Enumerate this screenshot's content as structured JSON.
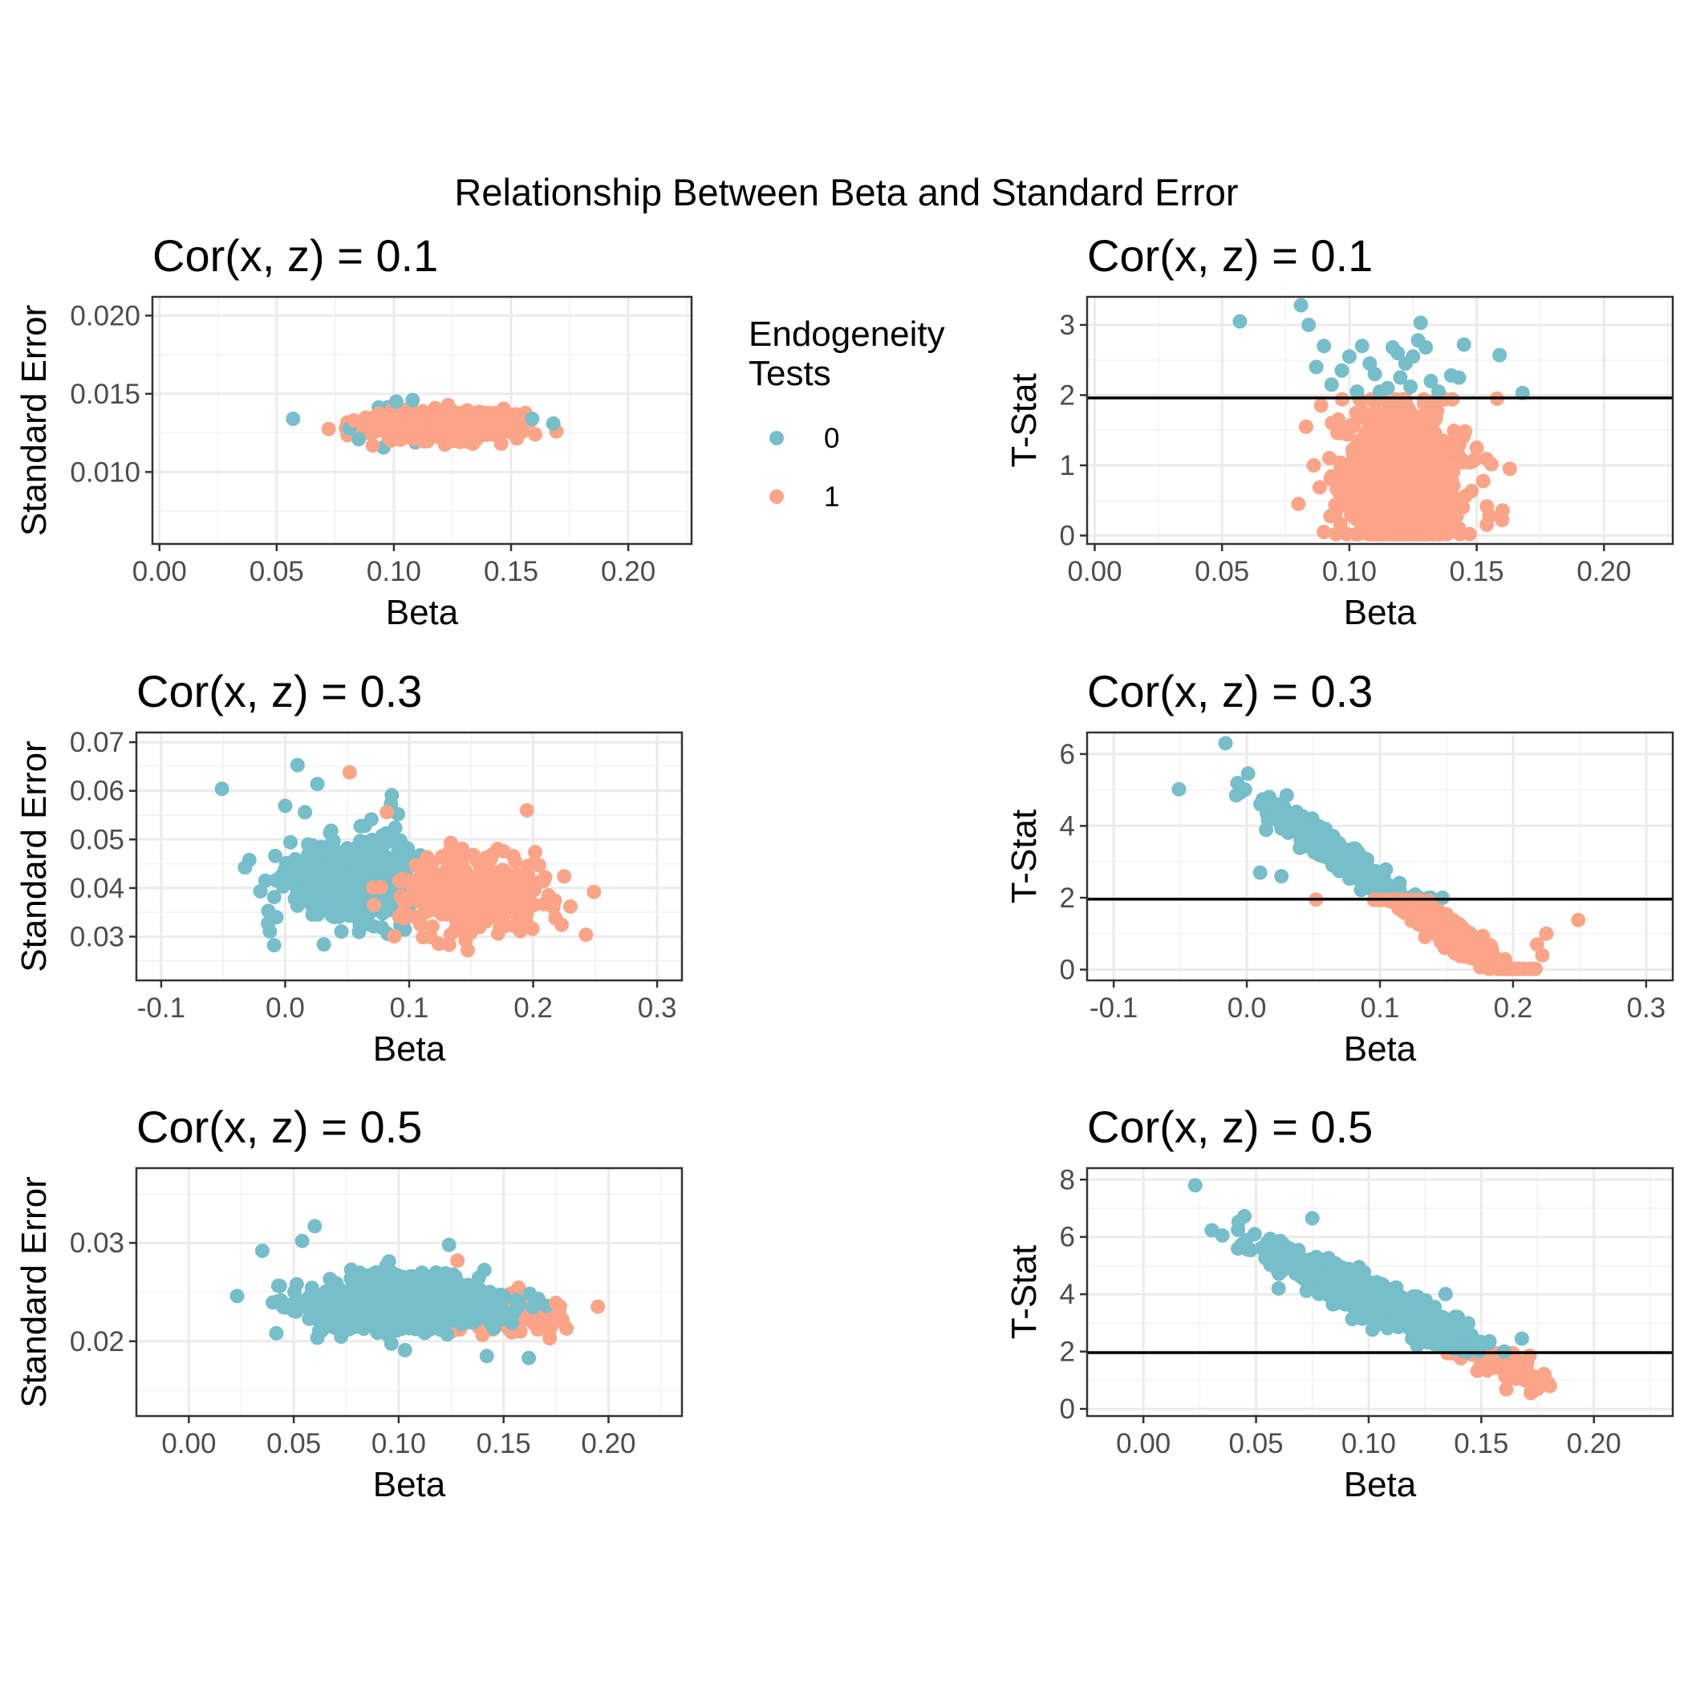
{
  "main_title": "Relationship Between Beta and Standard Error",
  "legend": {
    "title_lines": [
      "Endogeneity",
      "Tests"
    ],
    "items": [
      {
        "label": "0",
        "color": "#76BEC9"
      },
      {
        "label": "1",
        "color": "#FCA487"
      }
    ]
  },
  "chart_data": [
    {
      "type": "scatter",
      "title": "Cor(x, z) = 0.1",
      "xlabel": "Beta",
      "ylabel": "Standard Error",
      "xlim": [
        -0.003,
        0.227
      ],
      "ylim": [
        0.0054,
        0.0212
      ],
      "xticks": [
        0.0,
        0.05,
        0.1,
        0.15,
        0.2
      ],
      "xtick_labels": [
        "0.00",
        "0.05",
        "0.10",
        "0.15",
        "0.20"
      ],
      "yticks": [
        0.01,
        0.015,
        0.02
      ],
      "ytick_labels": [
        "0.010",
        "0.015",
        "0.020"
      ],
      "grid": true,
      "hline": null,
      "clusters": [
        {
          "group": "0",
          "n": 60,
          "cx": 0.118,
          "sx": 0.016,
          "cy": 0.013,
          "sy": 0.0005,
          "slope": 0,
          "seed": 11
        },
        {
          "group": "1",
          "n": 950,
          "cx": 0.12,
          "sx": 0.013,
          "cy": 0.013,
          "sy": 0.0004,
          "slope": 0,
          "seed": 12
        }
      ],
      "points": [
        {
          "group": "0",
          "x": 0.057,
          "y": 0.0134
        },
        {
          "group": "0",
          "x": 0.168,
          "y": 0.0131
        },
        {
          "group": "0",
          "x": 0.159,
          "y": 0.0134
        },
        {
          "group": "0",
          "x": 0.085,
          "y": 0.0121
        },
        {
          "group": "0",
          "x": 0.101,
          "y": 0.0145
        },
        {
          "group": "0",
          "x": 0.108,
          "y": 0.0146
        },
        {
          "group": "0",
          "x": 0.081,
          "y": 0.0128
        },
        {
          "group": "1",
          "x": 0.083,
          "y": 0.0133
        },
        {
          "group": "1",
          "x": 0.155,
          "y": 0.0126
        },
        {
          "group": "1",
          "x": 0.091,
          "y": 0.0117
        }
      ]
    },
    {
      "type": "scatter",
      "title": "Cor(x, z) = 0.1",
      "xlabel": "Beta",
      "ylabel": "T-Stat",
      "xlim": [
        -0.003,
        0.227
      ],
      "ylim": [
        -0.12,
        3.4
      ],
      "xticks": [
        0.0,
        0.05,
        0.1,
        0.15,
        0.2
      ],
      "xtick_labels": [
        "0.00",
        "0.05",
        "0.10",
        "0.15",
        "0.20"
      ],
      "yticks": [
        0,
        1,
        2,
        3
      ],
      "ytick_labels": [
        "0",
        "1",
        "2",
        "3"
      ],
      "grid": true,
      "hline": 1.96,
      "clusters": [
        {
          "group": "1",
          "n": 1000,
          "cx": 0.12,
          "sx": 0.011,
          "cy": 0.8,
          "sy": 0.5,
          "slope": 0,
          "seed": 21
        }
      ],
      "points": [
        {
          "group": "0",
          "x": 0.057,
          "y": 3.05
        },
        {
          "group": "0",
          "x": 0.081,
          "y": 3.28
        },
        {
          "group": "0",
          "x": 0.084,
          "y": 3.0
        },
        {
          "group": "0",
          "x": 0.09,
          "y": 2.7
        },
        {
          "group": "0",
          "x": 0.087,
          "y": 2.4
        },
        {
          "group": "0",
          "x": 0.093,
          "y": 2.15
        },
        {
          "group": "0",
          "x": 0.1,
          "y": 2.55
        },
        {
          "group": "0",
          "x": 0.105,
          "y": 2.7
        },
        {
          "group": "0",
          "x": 0.11,
          "y": 2.3
        },
        {
          "group": "0",
          "x": 0.112,
          "y": 2.05
        },
        {
          "group": "0",
          "x": 0.117,
          "y": 2.68
        },
        {
          "group": "0",
          "x": 0.119,
          "y": 2.6
        },
        {
          "group": "0",
          "x": 0.122,
          "y": 2.45
        },
        {
          "group": "0",
          "x": 0.125,
          "y": 2.55
        },
        {
          "group": "0",
          "x": 0.127,
          "y": 2.78
        },
        {
          "group": "0",
          "x": 0.128,
          "y": 3.03
        },
        {
          "group": "0",
          "x": 0.13,
          "y": 2.68
        },
        {
          "group": "0",
          "x": 0.132,
          "y": 2.2
        },
        {
          "group": "0",
          "x": 0.12,
          "y": 2.25
        },
        {
          "group": "0",
          "x": 0.103,
          "y": 2.05
        },
        {
          "group": "0",
          "x": 0.097,
          "y": 2.35
        },
        {
          "group": "0",
          "x": 0.108,
          "y": 2.45
        },
        {
          "group": "0",
          "x": 0.135,
          "y": 2.05
        },
        {
          "group": "0",
          "x": 0.14,
          "y": 2.28
        },
        {
          "group": "0",
          "x": 0.143,
          "y": 2.25
        },
        {
          "group": "0",
          "x": 0.145,
          "y": 2.72
        },
        {
          "group": "0",
          "x": 0.159,
          "y": 2.57
        },
        {
          "group": "0",
          "x": 0.168,
          "y": 2.03
        },
        {
          "group": "0",
          "x": 0.115,
          "y": 2.1
        },
        {
          "group": "0",
          "x": 0.124,
          "y": 2.12
        },
        {
          "group": "1",
          "x": 0.08,
          "y": 0.45
        },
        {
          "group": "1",
          "x": 0.083,
          "y": 1.55
        },
        {
          "group": "1",
          "x": 0.086,
          "y": 1.0
        },
        {
          "group": "1",
          "x": 0.09,
          "y": 0.05
        },
        {
          "group": "1",
          "x": 0.158,
          "y": 1.95
        },
        {
          "group": "1",
          "x": 0.16,
          "y": 0.22
        },
        {
          "group": "1",
          "x": 0.163,
          "y": 0.95
        },
        {
          "group": "1",
          "x": 0.155,
          "y": 0.28
        },
        {
          "group": "1",
          "x": 0.15,
          "y": 1.25
        },
        {
          "group": "1",
          "x": 0.148,
          "y": 1.05
        }
      ]
    },
    {
      "type": "scatter",
      "title": "Cor(x, z) = 0.3",
      "xlabel": "Beta",
      "ylabel": "Standard Error",
      "xlim": [
        -0.12,
        0.32
      ],
      "ylim": [
        0.021,
        0.072
      ],
      "xticks": [
        -0.1,
        0.0,
        0.1,
        0.2,
        0.3
      ],
      "xtick_labels": [
        "-0.1",
        "0.0",
        "0.1",
        "0.2",
        "0.3"
      ],
      "yticks": [
        0.03,
        0.04,
        0.05,
        0.06,
        0.07
      ],
      "ytick_labels": [
        "0.03",
        "0.04",
        "0.05",
        "0.06",
        "0.07"
      ],
      "grid": true,
      "hline": null,
      "clusters": [
        {
          "group": "0",
          "n": 550,
          "cx": 0.06,
          "sx": 0.028,
          "cy": 0.041,
          "sy": 0.0042,
          "slope": 0,
          "seed": 31
        },
        {
          "group": "1",
          "n": 500,
          "cx": 0.15,
          "sx": 0.025,
          "cy": 0.0385,
          "sy": 0.0035,
          "slope": 0,
          "seed": 32
        }
      ],
      "points": [
        {
          "group": "0",
          "x": -0.051,
          "y": 0.0604
        },
        {
          "group": "0",
          "x": 0.01,
          "y": 0.0653
        },
        {
          "group": "0",
          "x": 0.026,
          "y": 0.0614
        },
        {
          "group": "0",
          "x": 0.0,
          "y": 0.0569
        },
        {
          "group": "0",
          "x": 0.016,
          "y": 0.0556
        },
        {
          "group": "0",
          "x": -0.016,
          "y": 0.0415
        },
        {
          "group": "0",
          "x": -0.008,
          "y": 0.0466
        },
        {
          "group": "0",
          "x": 0.086,
          "y": 0.0591
        },
        {
          "group": "0",
          "x": 0.091,
          "y": 0.0552
        },
        {
          "group": "1",
          "x": 0.052,
          "y": 0.0638
        },
        {
          "group": "1",
          "x": 0.082,
          "y": 0.0556
        },
        {
          "group": "1",
          "x": 0.195,
          "y": 0.056
        },
        {
          "group": "1",
          "x": 0.249,
          "y": 0.0392
        },
        {
          "group": "1",
          "x": 0.225,
          "y": 0.0424
        },
        {
          "group": "1",
          "x": 0.23,
          "y": 0.0362
        },
        {
          "group": "1",
          "x": 0.218,
          "y": 0.0338
        }
      ]
    },
    {
      "type": "scatter",
      "title": "Cor(x, z) = 0.3",
      "xlabel": "Beta",
      "ylabel": "T-Stat",
      "xlim": [
        -0.12,
        0.32
      ],
      "ylim": [
        -0.3,
        6.6
      ],
      "xticks": [
        -0.1,
        0.0,
        0.1,
        0.2,
        0.3
      ],
      "xtick_labels": [
        "-0.1",
        "0.0",
        "0.1",
        "0.2",
        "0.3"
      ],
      "yticks": [
        0,
        2,
        4,
        6
      ],
      "ytick_labels": [
        "0",
        "2",
        "4",
        "6"
      ],
      "grid": true,
      "hline": 1.96,
      "clusters": [
        {
          "group": "0",
          "n": 550,
          "cx": 0.065,
          "sx": 0.025,
          "cy": 3.3,
          "sy": 0.2,
          "slope": -25,
          "seed": 41
        },
        {
          "group": "1",
          "n": 500,
          "cx": 0.15,
          "sx": 0.024,
          "cy": 1.1,
          "sy": 0.18,
          "slope": -25,
          "seed": 42
        }
      ],
      "points": [
        {
          "group": "0",
          "x": -0.051,
          "y": 5.02
        },
        {
          "group": "0",
          "x": -0.016,
          "y": 6.3
        },
        {
          "group": "0",
          "x": -0.008,
          "y": 4.85
        },
        {
          "group": "0",
          "x": 0.03,
          "y": 4.85
        },
        {
          "group": "0",
          "x": 0.01,
          "y": 2.7
        },
        {
          "group": "0",
          "x": 0.026,
          "y": 2.6
        },
        {
          "group": "1",
          "x": 0.052,
          "y": 1.95
        },
        {
          "group": "1",
          "x": 0.249,
          "y": 1.38
        },
        {
          "group": "1",
          "x": 0.225,
          "y": 1.0
        },
        {
          "group": "1",
          "x": 0.222,
          "y": 0.4
        },
        {
          "group": "1",
          "x": 0.218,
          "y": 0.7
        }
      ]
    },
    {
      "type": "scatter",
      "title": "Cor(x, z) = 0.5",
      "xlabel": "Beta",
      "ylabel": "Standard Error",
      "xlim": [
        -0.025,
        0.235
      ],
      "ylim": [
        0.0124,
        0.0376
      ],
      "xticks": [
        0.0,
        0.05,
        0.1,
        0.15,
        0.2
      ],
      "xtick_labels": [
        "0.00",
        "0.05",
        "0.10",
        "0.15",
        "0.20"
      ],
      "yticks": [
        0.02,
        0.03
      ],
      "ytick_labels": [
        "0.02",
        "0.03"
      ],
      "grid": true,
      "hline": null,
      "clusters": [
        {
          "group": "1",
          "n": 110,
          "cx": 0.155,
          "sx": 0.012,
          "cy": 0.0228,
          "sy": 0.0011,
          "slope": 0,
          "seed": 52
        },
        {
          "group": "0",
          "n": 950,
          "cx": 0.1,
          "sx": 0.022,
          "cy": 0.0238,
          "sy": 0.0013,
          "slope": 0,
          "seed": 51
        }
      ],
      "points": [
        {
          "group": "0",
          "x": 0.023,
          "y": 0.0246
        },
        {
          "group": "0",
          "x": 0.035,
          "y": 0.0292
        },
        {
          "group": "0",
          "x": 0.06,
          "y": 0.0317
        },
        {
          "group": "0",
          "x": 0.054,
          "y": 0.0302
        },
        {
          "group": "0",
          "x": 0.124,
          "y": 0.0298
        },
        {
          "group": "0",
          "x": 0.162,
          "y": 0.0183
        },
        {
          "group": "0",
          "x": 0.142,
          "y": 0.0185
        },
        {
          "group": "0",
          "x": 0.103,
          "y": 0.0191
        },
        {
          "group": "1",
          "x": 0.18,
          "y": 0.0213
        },
        {
          "group": "1",
          "x": 0.178,
          "y": 0.0222
        },
        {
          "group": "1",
          "x": 0.175,
          "y": 0.0239
        },
        {
          "group": "1",
          "x": 0.172,
          "y": 0.0203
        },
        {
          "group": "1",
          "x": 0.128,
          "y": 0.0282
        }
      ]
    },
    {
      "type": "scatter",
      "title": "Cor(x, z) = 0.5",
      "xlabel": "Beta",
      "ylabel": "T-Stat",
      "xlim": [
        -0.025,
        0.235
      ],
      "ylim": [
        -0.25,
        8.4
      ],
      "xticks": [
        0.0,
        0.05,
        0.1,
        0.15,
        0.2
      ],
      "xtick_labels": [
        "0.00",
        "0.05",
        "0.10",
        "0.15",
        "0.20"
      ],
      "yticks": [
        0,
        2,
        4,
        6,
        8
      ],
      "ytick_labels": [
        "0",
        "2",
        "4",
        "6",
        "8"
      ],
      "grid": true,
      "hline": 1.96,
      "clusters": [
        {
          "group": "1",
          "n": 110,
          "cx": 0.158,
          "sx": 0.011,
          "cy": 1.7,
          "sy": 0.3,
          "slope": -35,
          "seed": 62
        },
        {
          "group": "0",
          "n": 950,
          "cx": 0.1,
          "sx": 0.022,
          "cy": 3.9,
          "sy": 0.3,
          "slope": -35,
          "seed": 61
        }
      ],
      "points": [
        {
          "group": "0",
          "x": 0.023,
          "y": 7.8
        },
        {
          "group": "0",
          "x": 0.075,
          "y": 6.65
        },
        {
          "group": "0",
          "x": 0.035,
          "y": 6.05
        },
        {
          "group": "0",
          "x": 0.042,
          "y": 6.25
        },
        {
          "group": "0",
          "x": 0.06,
          "y": 4.2
        },
        {
          "group": "0",
          "x": 0.168,
          "y": 2.45
        },
        {
          "group": "1",
          "x": 0.18,
          "y": 0.85
        },
        {
          "group": "1",
          "x": 0.175,
          "y": 0.7
        },
        {
          "group": "1",
          "x": 0.172,
          "y": 0.55
        },
        {
          "group": "1",
          "x": 0.178,
          "y": 1.2
        }
      ]
    }
  ]
}
